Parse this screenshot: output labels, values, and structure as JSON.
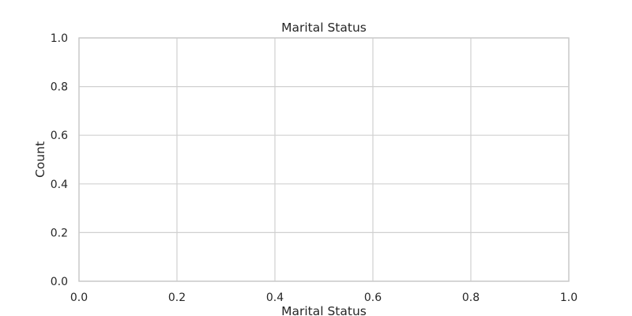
{
  "chart_data": {
    "type": "bar",
    "title": "Marital Status",
    "xlabel": "Marital Status",
    "ylabel": "Count",
    "categories": [],
    "values": [],
    "xlim": [
      0.0,
      1.0
    ],
    "ylim": [
      0.0,
      1.0
    ],
    "xticks": [
      "0.0",
      "0.2",
      "0.4",
      "0.6",
      "0.8",
      "1.0"
    ],
    "yticks": [
      "0.0",
      "0.2",
      "0.4",
      "0.6",
      "0.8",
      "1.0"
    ],
    "grid": true,
    "style": {
      "background": "#ffffff",
      "grid_color": "#d0d0d0",
      "spine_color": "#cccccc",
      "text_color": "#262626"
    }
  }
}
